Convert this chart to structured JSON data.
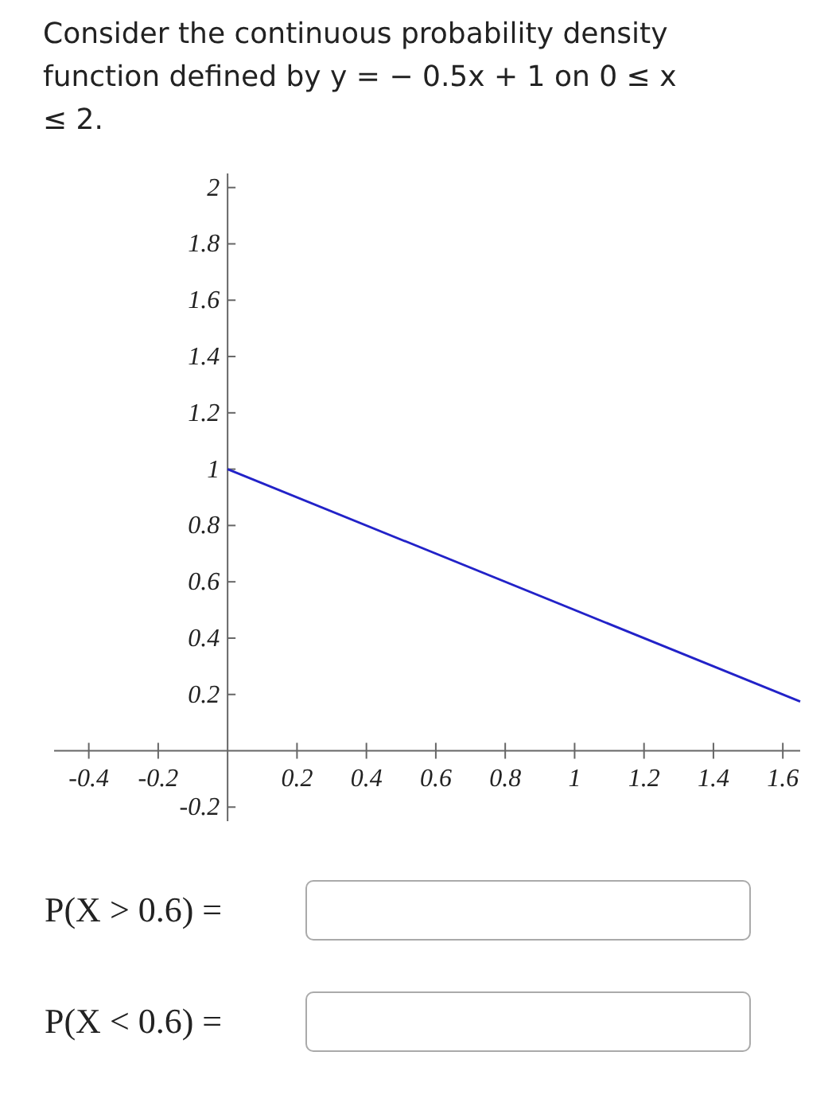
{
  "chart_data": {
    "type": "line",
    "title": "Consider the continuous probability density function defined by y = − 0.5x + 1 on 0 ≤ x ≤ 2.",
    "x": [
      0,
      1.65
    ],
    "series": [
      {
        "color": "#2222c8",
        "values": [
          1,
          0.175
        ]
      }
    ],
    "xlim": [
      -0.5,
      1.65
    ],
    "ylim": [
      -0.25,
      2.05
    ],
    "xticks": [
      -0.4,
      -0.2,
      0.2,
      0.4,
      0.6,
      0.8,
      1,
      1.2,
      1.4,
      1.6
    ],
    "yticks": [
      -0.2,
      0.2,
      0.4,
      0.6,
      0.8,
      1,
      1.2,
      1.4,
      1.6,
      1.8,
      2
    ],
    "grid": false,
    "marker": "none",
    "line_style": "solid",
    "annotations": [
      "P(X > 0.6) =",
      "P(X < 0.6) ="
    ]
  }
}
